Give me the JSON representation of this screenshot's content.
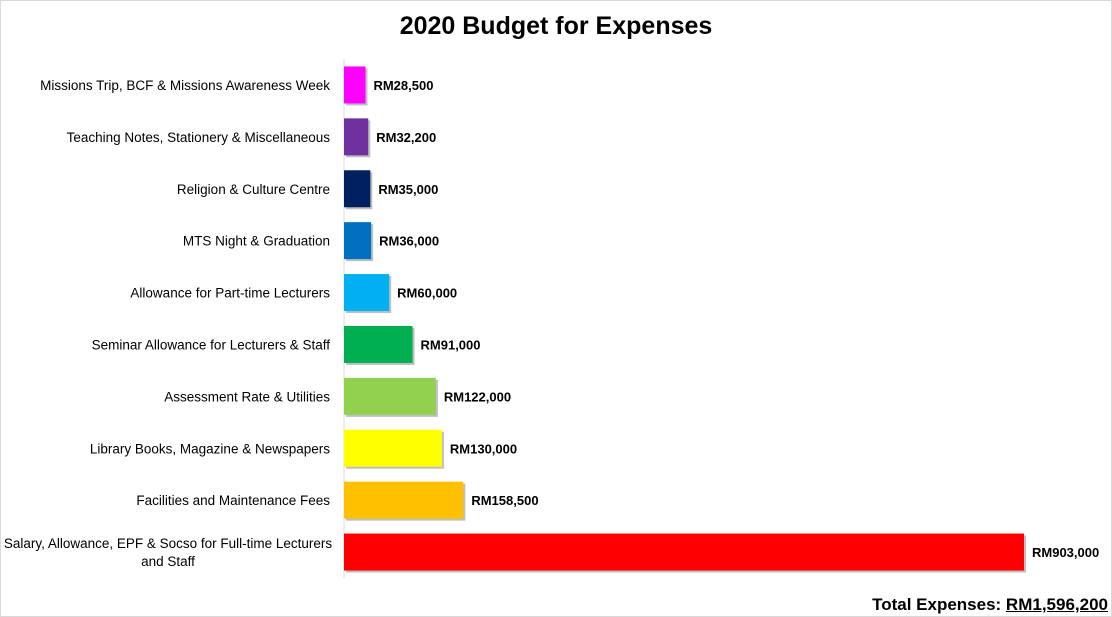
{
  "chart_data": {
    "type": "bar",
    "orientation": "horizontal",
    "title": "2020 Budget for Expenses",
    "categories": [
      "Missions Trip, BCF & Missions Awareness Week",
      "Teaching Notes, Stationery & Miscellaneous",
      "Religion & Culture Centre",
      "MTS Night & Graduation",
      "Allowance for Part-time Lecturers",
      "Seminar Allowance for Lecturers & Staff",
      "Assessment Rate & Utilities",
      "Library Books, Magazine & Newspapers",
      "Facilities and Maintenance Fees",
      "Salary, Allowance, EPF & Socso for Full-time Lecturers and Staff"
    ],
    "values": [
      28500,
      32200,
      35000,
      36000,
      60000,
      91000,
      122000,
      130000,
      158500,
      903000
    ],
    "data_labels": [
      "RM28,500",
      "RM32,200",
      "RM35,000",
      "RM36,000",
      "RM60,000",
      "RM91,000",
      "RM122,000",
      "RM130,000",
      "RM158,500",
      "RM903,000"
    ],
    "colors": [
      "#ff00ff",
      "#7030a0",
      "#002060",
      "#0070c0",
      "#00b0f0",
      "#00b050",
      "#92d050",
      "#ffff00",
      "#ffc000",
      "#ff0000"
    ],
    "xlim": [
      0,
      903000
    ],
    "grid": false,
    "legend": "none"
  },
  "footer": {
    "total_label": "Total Expenses: ",
    "total_value": "RM1,596,200"
  }
}
